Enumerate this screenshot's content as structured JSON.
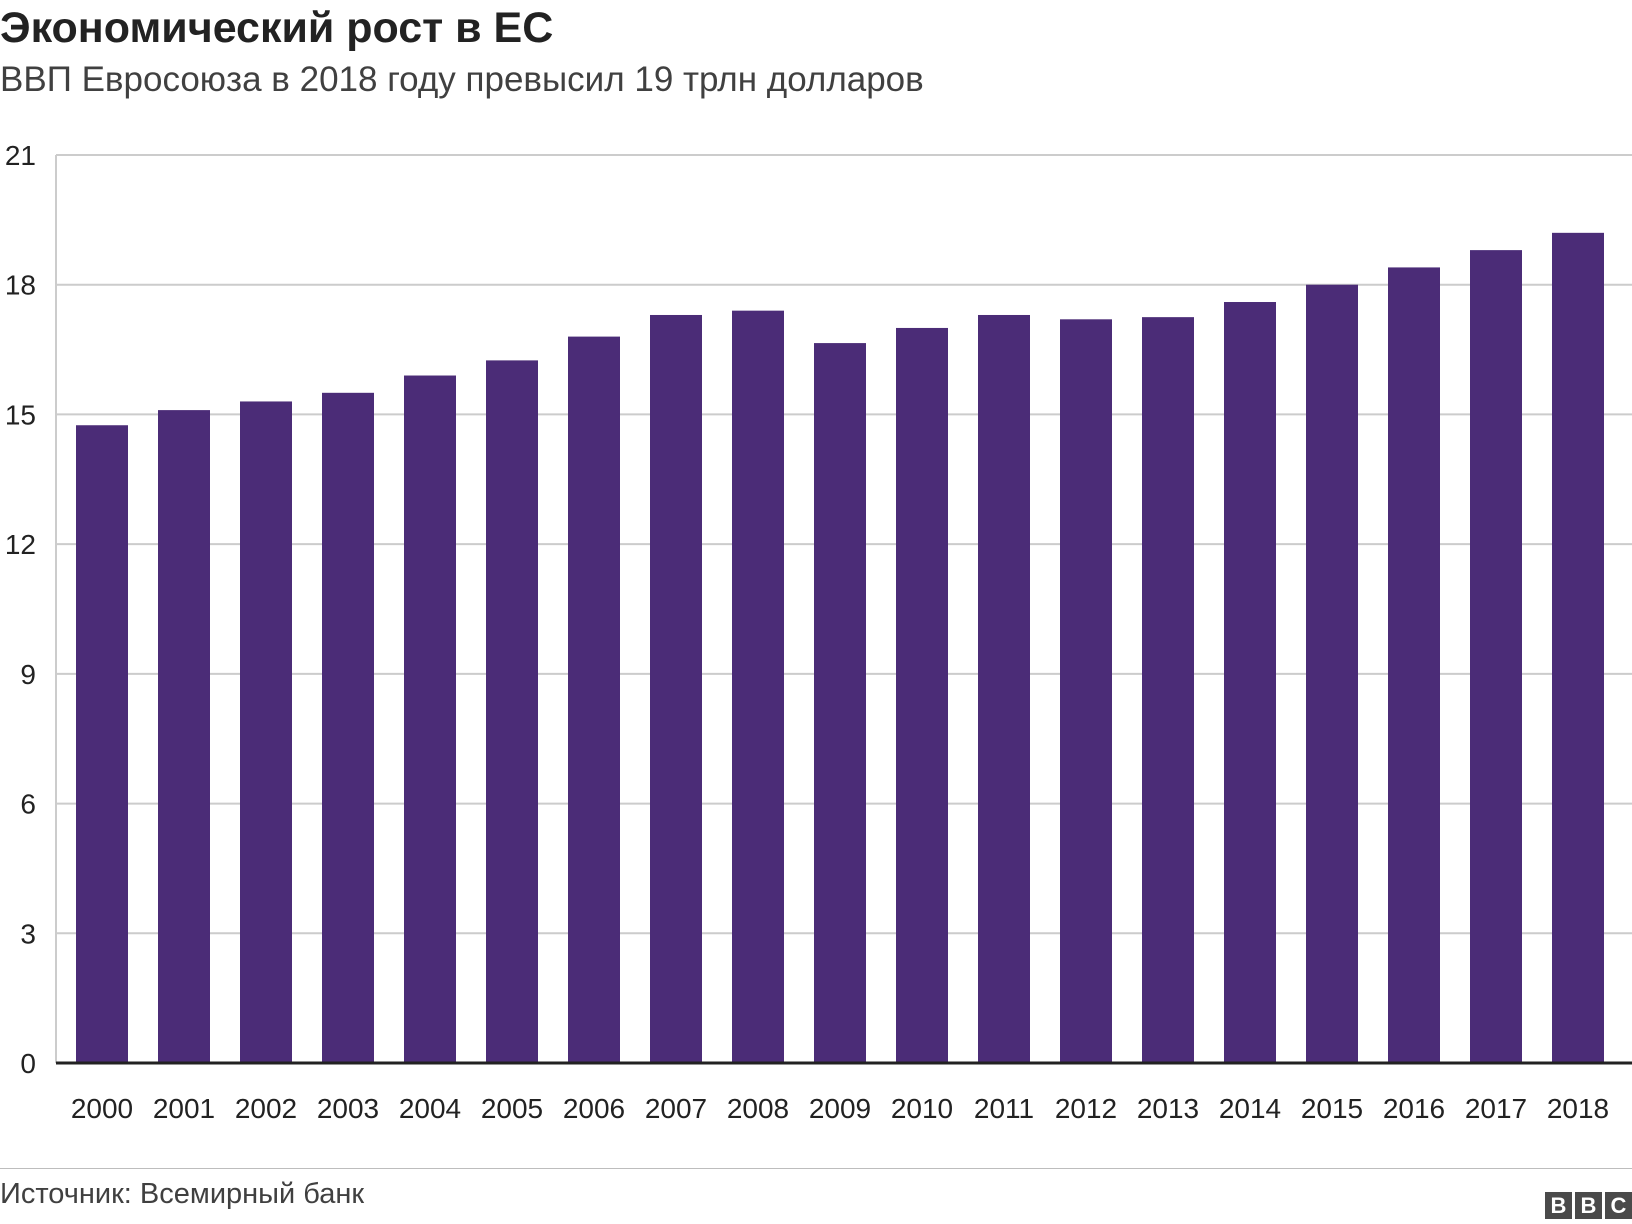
{
  "title": "Экономический рост в ЕС",
  "subtitle": "ВВП Евросоюза в 2018 году превысил 19 трлн долларов",
  "source": "Источник: Всемирный банк",
  "logo": [
    "B",
    "B",
    "C"
  ],
  "colors": {
    "bar": "#4b2c77",
    "grid": "#cccccc",
    "axis": "#222222"
  },
  "chart_data": {
    "type": "bar",
    "title": "Экономический рост в ЕС",
    "subtitle": "ВВП Евросоюза в 2018 году превысил 19 трлн долларов",
    "xlabel": "",
    "ylabel": "",
    "ylim": [
      0,
      21
    ],
    "yticks": [
      0,
      3,
      6,
      9,
      12,
      15,
      18,
      21
    ],
    "grid": true,
    "categories": [
      "2000",
      "2001",
      "2002",
      "2003",
      "2004",
      "2005",
      "2006",
      "2007",
      "2008",
      "2009",
      "2010",
      "2011",
      "2012",
      "2013",
      "2014",
      "2015",
      "2016",
      "2017",
      "2018"
    ],
    "values": [
      14.75,
      15.1,
      15.3,
      15.5,
      15.9,
      16.25,
      16.8,
      17.3,
      17.4,
      16.65,
      17.0,
      17.3,
      17.2,
      17.25,
      17.6,
      18.0,
      18.4,
      18.8,
      19.2
    ]
  }
}
